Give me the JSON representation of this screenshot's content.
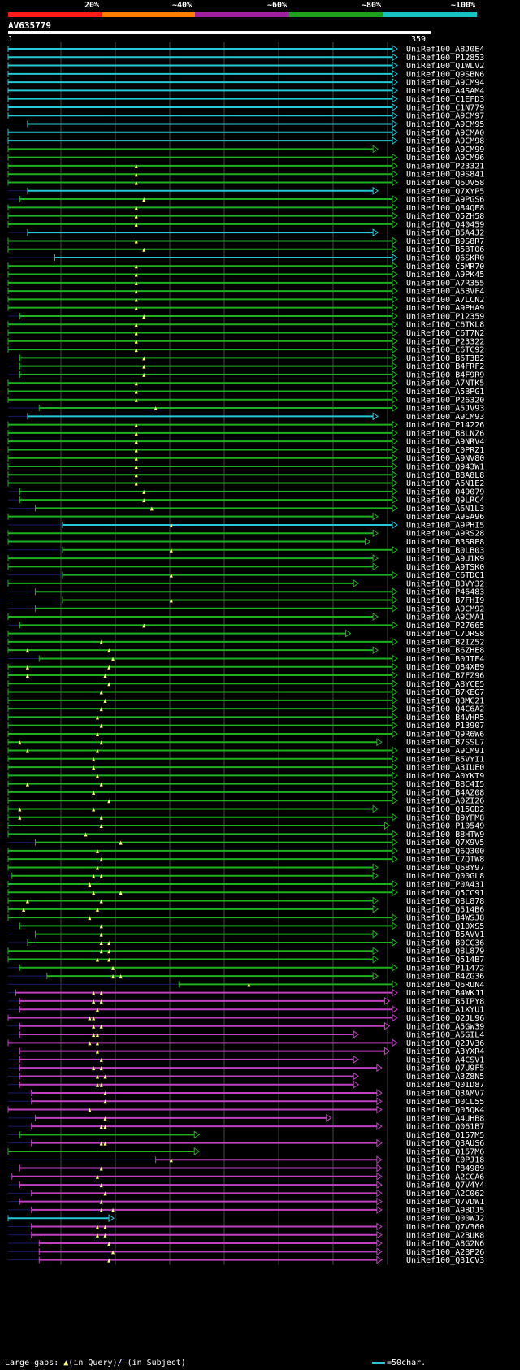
{
  "scale": {
    "labels": [
      "20%",
      "~40%",
      "~60%",
      "~80%",
      "~100%"
    ],
    "colors": [
      "#ff1a1a",
      "#ff8000",
      "#a020a0",
      "#1ea01e",
      "#17c2c2"
    ]
  },
  "query": {
    "id": "AV635779",
    "start": "1",
    "end": "359"
  },
  "hits_colors": {
    "cyan": "#25c8d8",
    "green": "#1eb01e",
    "magenta": "#c040c0",
    "gap": "#ffff80",
    "grid": "#444444"
  },
  "hits": [
    {
      "name": "UniRef100_A8J0E4",
      "c": "c",
      "s": 0,
      "e": 100
    },
    {
      "name": "UniRef100_P12853",
      "c": "c",
      "s": 0,
      "e": 100
    },
    {
      "name": "UniRef100_Q1WLV2",
      "c": "c",
      "s": 0,
      "e": 100
    },
    {
      "name": "UniRef100_Q9SBN6",
      "c": "c",
      "s": 0,
      "e": 100
    },
    {
      "name": "UniRef100_A9CM94",
      "c": "c",
      "s": 0,
      "e": 100
    },
    {
      "name": "UniRef100_A4SAM4",
      "c": "c",
      "s": 0,
      "e": 100
    },
    {
      "name": "UniRef100_C1EFD3",
      "c": "c",
      "s": 0,
      "e": 100
    },
    {
      "name": "UniRef100_C1N779",
      "c": "c",
      "s": 0,
      "e": 100
    },
    {
      "name": "UniRef100_A9CM97",
      "c": "c",
      "s": 0,
      "e": 100
    },
    {
      "name": "UniRef100_A9CM95",
      "c": "c",
      "s": 5,
      "e": 100
    },
    {
      "name": "UniRef100_A9CMA0",
      "c": "c",
      "s": 0,
      "e": 100
    },
    {
      "name": "UniRef100_A9CM98",
      "c": "c",
      "s": 0,
      "e": 100
    },
    {
      "name": "UniRef100_A9CM99",
      "c": "g",
      "s": 0,
      "e": 95
    },
    {
      "name": "UniRef100_A9CM96",
      "c": "g",
      "s": 0,
      "e": 100
    },
    {
      "name": "UniRef100_P23321",
      "c": "g",
      "s": 0,
      "e": 100,
      "gap": [
        33
      ]
    },
    {
      "name": "UniRef100_Q9S841",
      "c": "g",
      "s": 0,
      "e": 100,
      "gap": [
        33
      ]
    },
    {
      "name": "UniRef100_Q6DV58",
      "c": "g",
      "s": 0,
      "e": 100,
      "gap": [
        33
      ]
    },
    {
      "name": "UniRef100_Q7XYP5",
      "c": "c",
      "s": 5,
      "e": 95
    },
    {
      "name": "UniRef100_A9PGS6",
      "c": "g",
      "s": 3,
      "e": 100,
      "gap": [
        35
      ]
    },
    {
      "name": "UniRef100_Q84QE8",
      "c": "g",
      "s": 0,
      "e": 100,
      "gap": [
        33
      ]
    },
    {
      "name": "UniRef100_Q5ZH58",
      "c": "g",
      "s": 0,
      "e": 100,
      "gap": [
        33
      ]
    },
    {
      "name": "UniRef100_Q40459",
      "c": "g",
      "s": 0,
      "e": 100,
      "gap": [
        33
      ]
    },
    {
      "name": "UniRef100_B5A4J2",
      "c": "c",
      "s": 5,
      "e": 95
    },
    {
      "name": "UniRef100_B9S8R7",
      "c": "g",
      "s": 0,
      "e": 100,
      "gap": [
        33
      ]
    },
    {
      "name": "UniRef100_B5BT06",
      "c": "g",
      "s": 0,
      "e": 100,
      "gap": [
        35
      ]
    },
    {
      "name": "UniRef100_Q6SKR0",
      "c": "c",
      "s": 12,
      "e": 100
    },
    {
      "name": "UniRef100_C5MR70",
      "c": "g",
      "s": 0,
      "e": 100,
      "gap": [
        33
      ]
    },
    {
      "name": "UniRef100_A9PK45",
      "c": "g",
      "s": 0,
      "e": 100,
      "gap": [
        33
      ]
    },
    {
      "name": "UniRef100_A7R355",
      "c": "g",
      "s": 0,
      "e": 100,
      "gap": [
        33
      ]
    },
    {
      "name": "UniRef100_A5BVF4",
      "c": "g",
      "s": 0,
      "e": 100,
      "gap": [
        33
      ]
    },
    {
      "name": "UniRef100_A7LCN2",
      "c": "g",
      "s": 0,
      "e": 100,
      "gap": [
        33
      ]
    },
    {
      "name": "UniRef100_A9PHA9",
      "c": "g",
      "s": 0,
      "e": 100,
      "gap": [
        33
      ]
    },
    {
      "name": "UniRef100_P12359",
      "c": "g",
      "s": 3,
      "e": 100,
      "gap": [
        35
      ]
    },
    {
      "name": "UniRef100_C6TKL8",
      "c": "g",
      "s": 0,
      "e": 100,
      "gap": [
        33
      ]
    },
    {
      "name": "UniRef100_C6T7N2",
      "c": "g",
      "s": 0,
      "e": 100,
      "gap": [
        33
      ]
    },
    {
      "name": "UniRef100_P23322",
      "c": "g",
      "s": 0,
      "e": 100,
      "gap": [
        33
      ]
    },
    {
      "name": "UniRef100_C6TC92",
      "c": "g",
      "s": 0,
      "e": 100,
      "gap": [
        33
      ]
    },
    {
      "name": "UniRef100_B6T3B2",
      "c": "g",
      "s": 3,
      "e": 100,
      "gap": [
        35
      ]
    },
    {
      "name": "UniRef100_B4FRF2",
      "c": "g",
      "s": 3,
      "e": 100,
      "gap": [
        35
      ]
    },
    {
      "name": "UniRef100_B4F9R9",
      "c": "g",
      "s": 3,
      "e": 100,
      "gap": [
        35
      ]
    },
    {
      "name": "UniRef100_A7NTK5",
      "c": "g",
      "s": 0,
      "e": 100,
      "gap": [
        33
      ]
    },
    {
      "name": "UniRef100_A5BPG1",
      "c": "g",
      "s": 0,
      "e": 100,
      "gap": [
        33
      ]
    },
    {
      "name": "UniRef100_P26320",
      "c": "g",
      "s": 0,
      "e": 100,
      "gap": [
        33
      ]
    },
    {
      "name": "UniRef100_A5JV93",
      "c": "g",
      "s": 8,
      "e": 100,
      "gap": [
        38
      ]
    },
    {
      "name": "UniRef100_A9CM93",
      "c": "c",
      "s": 5,
      "e": 95
    },
    {
      "name": "UniRef100_P14226",
      "c": "g",
      "s": 0,
      "e": 100,
      "gap": [
        33
      ]
    },
    {
      "name": "UniRef100_B8LNZ6",
      "c": "g",
      "s": 0,
      "e": 100,
      "gap": [
        33
      ]
    },
    {
      "name": "UniRef100_A9NRV4",
      "c": "g",
      "s": 0,
      "e": 100,
      "gap": [
        33
      ]
    },
    {
      "name": "UniRef100_C0PRZ1",
      "c": "g",
      "s": 0,
      "e": 100,
      "gap": [
        33
      ]
    },
    {
      "name": "UniRef100_A9NV80",
      "c": "g",
      "s": 0,
      "e": 100,
      "gap": [
        33
      ]
    },
    {
      "name": "UniRef100_Q943W1",
      "c": "g",
      "s": 0,
      "e": 100,
      "gap": [
        33
      ]
    },
    {
      "name": "UniRef100_B8A8L8",
      "c": "g",
      "s": 0,
      "e": 100,
      "gap": [
        33
      ]
    },
    {
      "name": "UniRef100_A6N1E2",
      "c": "g",
      "s": 0,
      "e": 100,
      "gap": [
        33
      ]
    },
    {
      "name": "UniRef100_O49079",
      "c": "g",
      "s": 3,
      "e": 100,
      "gap": [
        35
      ]
    },
    {
      "name": "UniRef100_Q9LRC4",
      "c": "g",
      "s": 3,
      "e": 100,
      "gap": [
        35
      ]
    },
    {
      "name": "UniRef100_A6N1L3",
      "c": "g",
      "s": 7,
      "e": 100,
      "gap": [
        37
      ]
    },
    {
      "name": "UniRef100_A9SA96",
      "c": "g",
      "s": 0,
      "e": 95
    },
    {
      "name": "UniRef100_A9PHI5",
      "c": "c",
      "s": 14,
      "e": 100,
      "gap": [
        42
      ]
    },
    {
      "name": "UniRef100_A9RS28",
      "c": "g",
      "s": 0,
      "e": 95
    },
    {
      "name": "UniRef100_B3SRP8",
      "c": "g",
      "s": 0,
      "e": 93
    },
    {
      "name": "UniRef100_B0LB03",
      "c": "g",
      "s": 14,
      "e": 100,
      "gap": [
        42
      ]
    },
    {
      "name": "UniRef100_A9U1K9",
      "c": "g",
      "s": 0,
      "e": 95
    },
    {
      "name": "UniRef100_A9TSK0",
      "c": "g",
      "s": 0,
      "e": 95
    },
    {
      "name": "UniRef100_C6TDC1",
      "c": "g",
      "s": 14,
      "e": 100,
      "gap": [
        42
      ]
    },
    {
      "name": "UniRef100_B3VY32",
      "c": "g",
      "s": 0,
      "e": 90
    },
    {
      "name": "UniRef100_P46483",
      "c": "g",
      "s": 7,
      "e": 100
    },
    {
      "name": "UniRef100_B7FHI9",
      "c": "g",
      "s": 14,
      "e": 100,
      "gap": [
        42
      ]
    },
    {
      "name": "UniRef100_A9CM92",
      "c": "g",
      "s": 7,
      "e": 100
    },
    {
      "name": "UniRef100_A9CMA1",
      "c": "g",
      "s": 0,
      "e": 95
    },
    {
      "name": "UniRef100_P27665",
      "c": "g",
      "s": 3,
      "e": 100,
      "gap": [
        35
      ]
    },
    {
      "name": "UniRef100_C7DRS8",
      "c": "g",
      "s": 0,
      "e": 88
    },
    {
      "name": "UniRef100_B2IZ52",
      "c": "g",
      "s": 0,
      "e": 100,
      "gap": [
        24
      ]
    },
    {
      "name": "UniRef100_B6ZHE8",
      "c": "g",
      "s": 0,
      "e": 95,
      "gap": [
        5,
        26
      ]
    },
    {
      "name": "UniRef100_B0JTE4",
      "c": "g",
      "s": 8,
      "e": 100,
      "gap": [
        27
      ]
    },
    {
      "name": "UniRef100_Q84XB9",
      "c": "g",
      "s": 0,
      "e": 100,
      "gap": [
        5,
        26
      ]
    },
    {
      "name": "UniRef100_B7FZ96",
      "c": "g",
      "s": 0,
      "e": 100,
      "gap": [
        5,
        25
      ]
    },
    {
      "name": "UniRef100_A8YCE5",
      "c": "g",
      "s": 0,
      "e": 100,
      "gap": [
        26
      ]
    },
    {
      "name": "UniRef100_B7KEG7",
      "c": "g",
      "s": 0,
      "e": 100,
      "gap": [
        24
      ]
    },
    {
      "name": "UniRef100_Q3MC21",
      "c": "g",
      "s": 0,
      "e": 100,
      "gap": [
        25
      ]
    },
    {
      "name": "UniRef100_Q4C6A2",
      "c": "g",
      "s": 0,
      "e": 100,
      "gap": [
        24
      ]
    },
    {
      "name": "UniRef100_B4VHR5",
      "c": "g",
      "s": 0,
      "e": 100,
      "gap": [
        23
      ]
    },
    {
      "name": "UniRef100_P13907",
      "c": "g",
      "s": 0,
      "e": 100,
      "gap": [
        24
      ]
    },
    {
      "name": "UniRef100_Q9R6W6",
      "c": "g",
      "s": 0,
      "e": 100,
      "gap": [
        23
      ]
    },
    {
      "name": "UniRef100_B7SSL7",
      "c": "g",
      "s": 0,
      "e": 96,
      "gap": [
        3,
        24
      ]
    },
    {
      "name": "UniRef100_A9CM91",
      "c": "g",
      "s": 0,
      "e": 100,
      "gap": [
        5,
        23
      ]
    },
    {
      "name": "UniRef100_B5VYI1",
      "c": "g",
      "s": 0,
      "e": 100,
      "gap": [
        22
      ]
    },
    {
      "name": "UniRef100_A3IUE0",
      "c": "g",
      "s": 0,
      "e": 100,
      "gap": [
        22
      ]
    },
    {
      "name": "UniRef100_A0YKT9",
      "c": "g",
      "s": 0,
      "e": 100,
      "gap": [
        23
      ]
    },
    {
      "name": "UniRef100_B8C4I5",
      "c": "g",
      "s": 0,
      "e": 100,
      "gap": [
        5,
        24
      ]
    },
    {
      "name": "UniRef100_B4AZ08",
      "c": "g",
      "s": 0,
      "e": 100,
      "gap": [
        22
      ]
    },
    {
      "name": "UniRef100_A0ZI26",
      "c": "g",
      "s": 0,
      "e": 100,
      "gap": [
        26
      ]
    },
    {
      "name": "UniRef100_Q15GD2",
      "c": "g",
      "s": 0,
      "e": 95,
      "gap": [
        3,
        22
      ]
    },
    {
      "name": "UniRef100_B9YFM8",
      "c": "g",
      "s": 0,
      "e": 100,
      "gap": [
        3,
        24
      ]
    },
    {
      "name": "UniRef100_P10549",
      "c": "g",
      "s": 0,
      "e": 98,
      "gap": [
        24
      ]
    },
    {
      "name": "UniRef100_B8HTW9",
      "c": "g",
      "s": 0,
      "e": 100,
      "gap": [
        20
      ]
    },
    {
      "name": "UniRef100_Q7X9V5",
      "c": "g",
      "s": 7,
      "e": 100,
      "gap": [
        29
      ]
    },
    {
      "name": "UniRef100_Q6Q300",
      "c": "g",
      "s": 0,
      "e": 100,
      "gap": [
        23
      ]
    },
    {
      "name": "UniRef100_C7QTW8",
      "c": "g",
      "s": 0,
      "e": 100,
      "gap": [
        24
      ]
    },
    {
      "name": "UniRef100_Q68Y97",
      "c": "g",
      "s": 0,
      "e": 95,
      "gap": [
        23
      ]
    },
    {
      "name": "UniRef100_Q00GL8",
      "c": "g",
      "s": 1,
      "e": 95,
      "gap": [
        22,
        24
      ]
    },
    {
      "name": "UniRef100_P0A431",
      "c": "g",
      "s": 0,
      "e": 100,
      "gap": [
        21
      ]
    },
    {
      "name": "UniRef100_Q5CC91",
      "c": "g",
      "s": 0,
      "e": 100,
      "gap": [
        22,
        29
      ]
    },
    {
      "name": "UniRef100_Q8L878",
      "c": "g",
      "s": 0,
      "e": 95,
      "gap": [
        5,
        24
      ]
    },
    {
      "name": "UniRef100_Q514B6",
      "c": "g",
      "s": 0,
      "e": 95,
      "gap": [
        4,
        23
      ]
    },
    {
      "name": "UniRef100_B4WSJ8",
      "c": "g",
      "s": 0,
      "e": 100,
      "gap": [
        21
      ]
    },
    {
      "name": "UniRef100_Q10XS5",
      "c": "g",
      "s": 3,
      "e": 100,
      "gap": [
        24
      ]
    },
    {
      "name": "UniRef100_B5AVV1",
      "c": "g",
      "s": 7,
      "e": 95,
      "gap": [
        24
      ]
    },
    {
      "name": "UniRef100_B0CC36",
      "c": "g",
      "s": 5,
      "e": 100,
      "gap": [
        24,
        26
      ]
    },
    {
      "name": "UniRef100_Q8L879",
      "c": "g",
      "s": 0,
      "e": 95,
      "gap": [
        24,
        26
      ]
    },
    {
      "name": "UniRef100_Q514B7",
      "c": "g",
      "s": 0,
      "e": 95,
      "gap": [
        23,
        26
      ]
    },
    {
      "name": "UniRef100_P11472",
      "c": "g",
      "s": 3,
      "e": 100,
      "gap": [
        27
      ]
    },
    {
      "name": "UniRef100_B4ZG36",
      "c": "g",
      "s": 10,
      "e": 95,
      "gap": [
        27,
        29
      ]
    },
    {
      "name": "UniRef100_Q6RUN4",
      "c": "g",
      "s": 44,
      "e": 100,
      "gap": [
        62
      ]
    },
    {
      "name": "UniRef100_B4WKJ1",
      "c": "m",
      "s": 2,
      "e": 100,
      "gap": [
        22,
        24
      ]
    },
    {
      "name": "UniRef100_B5IPY8",
      "c": "m",
      "s": 3,
      "e": 98,
      "gap": [
        22,
        24
      ]
    },
    {
      "name": "UniRef100_A1XYU1",
      "c": "m",
      "s": 3,
      "e": 100,
      "gap": [
        23
      ]
    },
    {
      "name": "UniRef100_Q2JL96",
      "c": "m",
      "s": 0,
      "e": 100,
      "gap": [
        21,
        22
      ]
    },
    {
      "name": "UniRef100_A5GW39",
      "c": "m",
      "s": 3,
      "e": 98,
      "gap": [
        22,
        24
      ]
    },
    {
      "name": "UniRef100_A5GIL4",
      "c": "m",
      "s": 3,
      "e": 90,
      "gap": [
        22,
        23
      ]
    },
    {
      "name": "UniRef100_Q2JV36",
      "c": "m",
      "s": 0,
      "e": 100,
      "gap": [
        21,
        23
      ]
    },
    {
      "name": "UniRef100_A3YXR4",
      "c": "m",
      "s": 3,
      "e": 98,
      "gap": [
        23
      ]
    },
    {
      "name": "UniRef100_A4CSV1",
      "c": "m",
      "s": 3,
      "e": 90,
      "gap": [
        24
      ]
    },
    {
      "name": "UniRef100_Q7U9F5",
      "c": "m",
      "s": 3,
      "e": 96,
      "gap": [
        22,
        24
      ]
    },
    {
      "name": "UniRef100_A3Z8N5",
      "c": "m",
      "s": 3,
      "e": 90,
      "gap": [
        23,
        25
      ]
    },
    {
      "name": "UniRef100_Q0ID87",
      "c": "m",
      "s": 3,
      "e": 90,
      "gap": [
        23,
        24
      ]
    },
    {
      "name": "UniRef100_Q3AMV7",
      "c": "m",
      "s": 6,
      "e": 96,
      "gap": [
        25
      ]
    },
    {
      "name": "UniRef100_D0CL55",
      "c": "m",
      "s": 6,
      "e": 96,
      "gap": [
        25
      ]
    },
    {
      "name": "UniRef100_Q05QK4",
      "c": "m",
      "s": 0,
      "e": 96,
      "gap": [
        21
      ]
    },
    {
      "name": "UniRef100_A4UHB8",
      "c": "m",
      "s": 7,
      "e": 83,
      "gap": [
        25
      ]
    },
    {
      "name": "UniRef100_Q061B7",
      "c": "m",
      "s": 6,
      "e": 96,
      "gap": [
        24,
        25
      ]
    },
    {
      "name": "UniRef100_Q157M5",
      "c": "g",
      "s": 3,
      "e": 49
    },
    {
      "name": "UniRef100_Q3AUS6",
      "c": "m",
      "s": 6,
      "e": 96,
      "gap": [
        24,
        25
      ]
    },
    {
      "name": "UniRef100_Q157M6",
      "c": "g",
      "s": 0,
      "e": 49
    },
    {
      "name": "UniRef100_C0PJ18",
      "c": "m",
      "s": 38,
      "e": 96,
      "gap": [
        42
      ]
    },
    {
      "name": "UniRef100_P84989",
      "c": "m",
      "s": 3,
      "e": 96,
      "gap": [
        24
      ]
    },
    {
      "name": "UniRef100_A2CCA6",
      "c": "m",
      "s": 1,
      "e": 96,
      "gap": [
        23
      ]
    },
    {
      "name": "UniRef100_Q7V4Y4",
      "c": "m",
      "s": 3,
      "e": 96,
      "gap": [
        24
      ]
    },
    {
      "name": "UniRef100_A2C062",
      "c": "m",
      "s": 6,
      "e": 96,
      "gap": [
        25
      ]
    },
    {
      "name": "UniRef100_Q7VDW1",
      "c": "m",
      "s": 3,
      "e": 96,
      "gap": [
        24
      ]
    },
    {
      "name": "UniRef100_A9BDJ5",
      "c": "m",
      "s": 6,
      "e": 96,
      "gap": [
        24,
        27
      ]
    },
    {
      "name": "UniRef100_Q00WJ2",
      "c": "c",
      "s": 0,
      "e": 27
    },
    {
      "name": "UniRef100_Q7V360",
      "c": "m",
      "s": 6,
      "e": 96,
      "gap": [
        23,
        25
      ]
    },
    {
      "name": "UniRef100_A2BUK8",
      "c": "m",
      "s": 6,
      "e": 96,
      "gap": [
        23,
        25
      ]
    },
    {
      "name": "UniRef100_A8G2N6",
      "c": "m",
      "s": 8,
      "e": 96,
      "gap": [
        26
      ]
    },
    {
      "name": "UniRef100_A2BP26",
      "c": "m",
      "s": 8,
      "e": 96,
      "gap": [
        27
      ]
    },
    {
      "name": "UniRef100_Q31CV3",
      "c": "m",
      "s": 8,
      "e": 96,
      "gap": [
        26
      ]
    }
  ],
  "footer": {
    "label": "Large gaps:",
    "query_mark": "▲",
    "query_text": "(in Query)/",
    "subject_mark": "–",
    "subject_text": "(in Subject)"
  },
  "legend": {
    "text": "=50char."
  }
}
